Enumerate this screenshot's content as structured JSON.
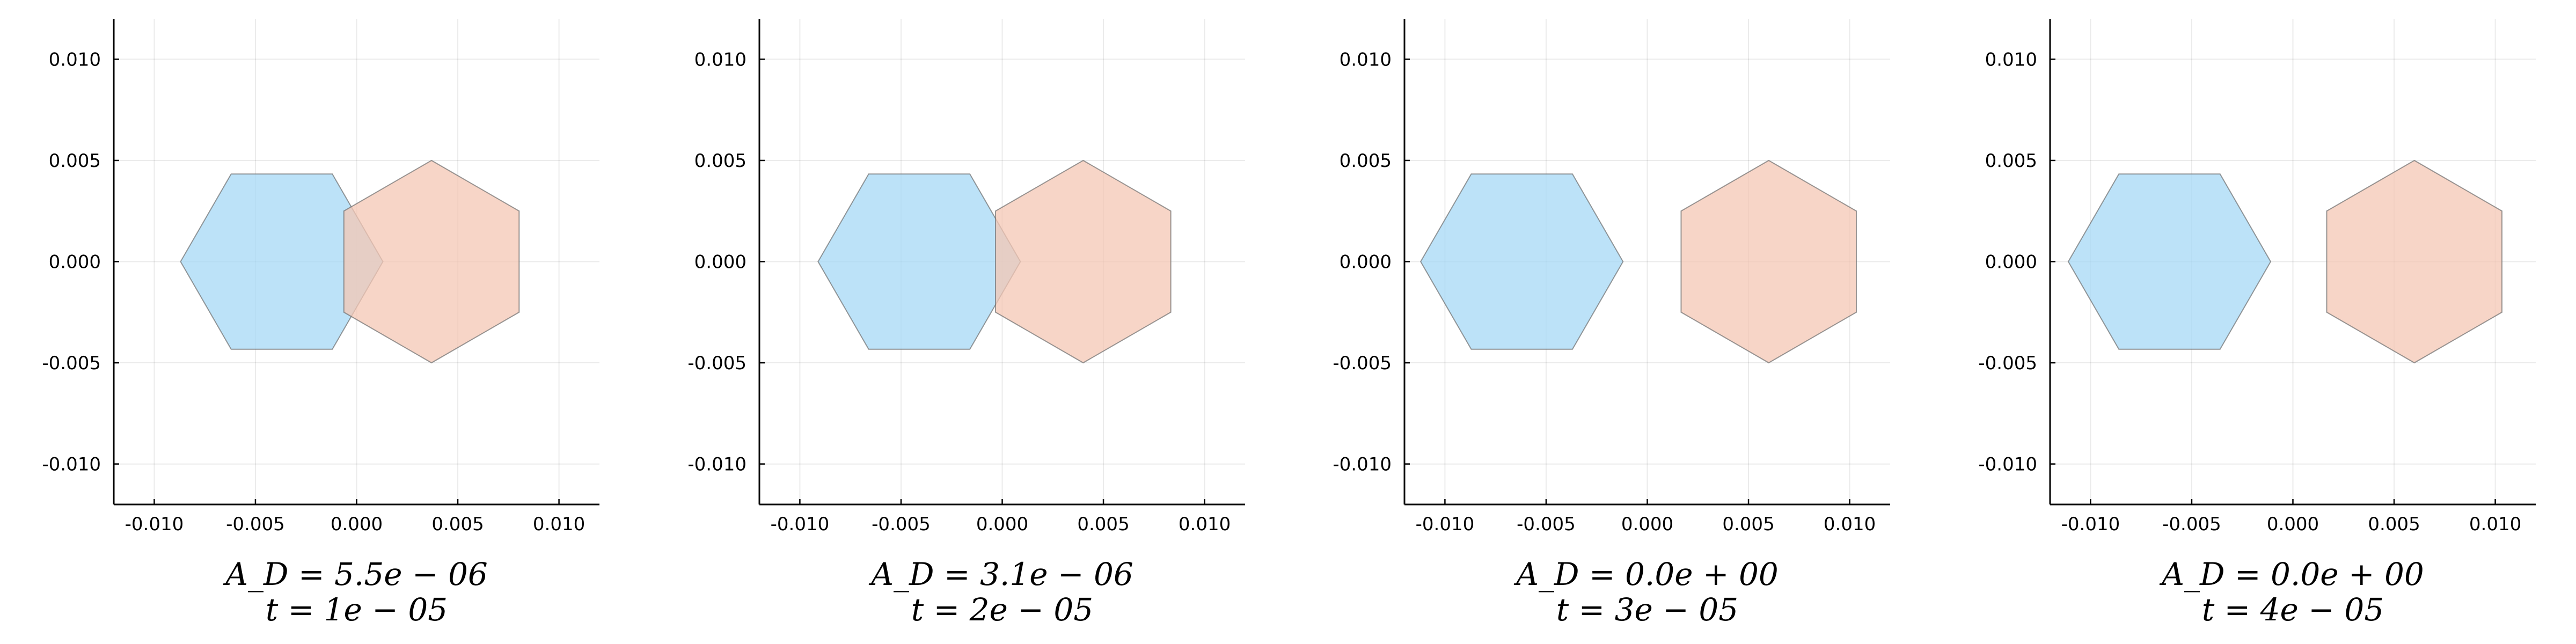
{
  "chart_data": [
    {
      "type": "polygon",
      "caption": [
        "A_D = 5.5e − 06",
        "t = 1e − 05"
      ],
      "xlim": [
        -0.012,
        0.012
      ],
      "ylim": [
        -0.012,
        0.012
      ],
      "xticks": [
        -0.01,
        -0.005,
        0.0,
        0.005,
        0.01
      ],
      "yticks": [
        -0.01,
        -0.005,
        0.0,
        0.005,
        0.01
      ],
      "tick_labels": [
        "-0.010",
        "-0.005",
        "0.000",
        "0.005",
        "0.010"
      ],
      "grid": true,
      "hexagons": [
        {
          "center": [
            -0.0037,
            0.0
          ],
          "radius": 0.005,
          "orientation": "flat",
          "color": "#a6d8f6"
        },
        {
          "center": [
            0.0037,
            0.0
          ],
          "radius": 0.005,
          "orientation": "pointy",
          "color": "#f4c7b4"
        }
      ]
    },
    {
      "type": "polygon",
      "caption": [
        "A_D = 3.1e − 06",
        "t = 2e − 05"
      ],
      "xlim": [
        -0.012,
        0.012
      ],
      "ylim": [
        -0.012,
        0.012
      ],
      "xticks": [
        -0.01,
        -0.005,
        0.0,
        0.005,
        0.01
      ],
      "yticks": [
        -0.01,
        -0.005,
        0.0,
        0.005,
        0.01
      ],
      "tick_labels": [
        "-0.010",
        "-0.005",
        "0.000",
        "0.005",
        "0.010"
      ],
      "grid": true,
      "hexagons": [
        {
          "center": [
            -0.0041,
            0.0
          ],
          "radius": 0.005,
          "orientation": "flat",
          "color": "#a6d8f6"
        },
        {
          "center": [
            0.004,
            0.0
          ],
          "radius": 0.005,
          "orientation": "pointy",
          "color": "#f4c7b4"
        }
      ]
    },
    {
      "type": "polygon",
      "caption": [
        "A_D = 0.0e + 00",
        "t = 3e − 05"
      ],
      "xlim": [
        -0.012,
        0.012
      ],
      "ylim": [
        -0.012,
        0.012
      ],
      "xticks": [
        -0.01,
        -0.005,
        0.0,
        0.005,
        0.01
      ],
      "yticks": [
        -0.01,
        -0.005,
        0.0,
        0.005,
        0.01
      ],
      "tick_labels": [
        "-0.010",
        "-0.005",
        "0.000",
        "0.005",
        "0.010"
      ],
      "grid": true,
      "hexagons": [
        {
          "center": [
            -0.0062,
            0.0
          ],
          "radius": 0.005,
          "orientation": "flat",
          "color": "#a6d8f6"
        },
        {
          "center": [
            0.006,
            0.0
          ],
          "radius": 0.005,
          "orientation": "pointy",
          "color": "#f4c7b4"
        }
      ]
    },
    {
      "type": "polygon",
      "caption": [
        "A_D = 0.0e + 00",
        "t = 4e − 05"
      ],
      "xlim": [
        -0.012,
        0.012
      ],
      "ylim": [
        -0.012,
        0.012
      ],
      "xticks": [
        -0.01,
        -0.005,
        0.0,
        0.005,
        0.01
      ],
      "yticks": [
        -0.01,
        -0.005,
        0.0,
        0.005,
        0.01
      ],
      "tick_labels": [
        "-0.010",
        "-0.005",
        "0.000",
        "0.005",
        "0.010"
      ],
      "grid": true,
      "hexagons": [
        {
          "center": [
            -0.0061,
            0.0
          ],
          "radius": 0.005,
          "orientation": "flat",
          "color": "#a6d8f6"
        },
        {
          "center": [
            0.006,
            0.0
          ],
          "radius": 0.005,
          "orientation": "pointy",
          "color": "#f4c7b4"
        }
      ]
    }
  ]
}
